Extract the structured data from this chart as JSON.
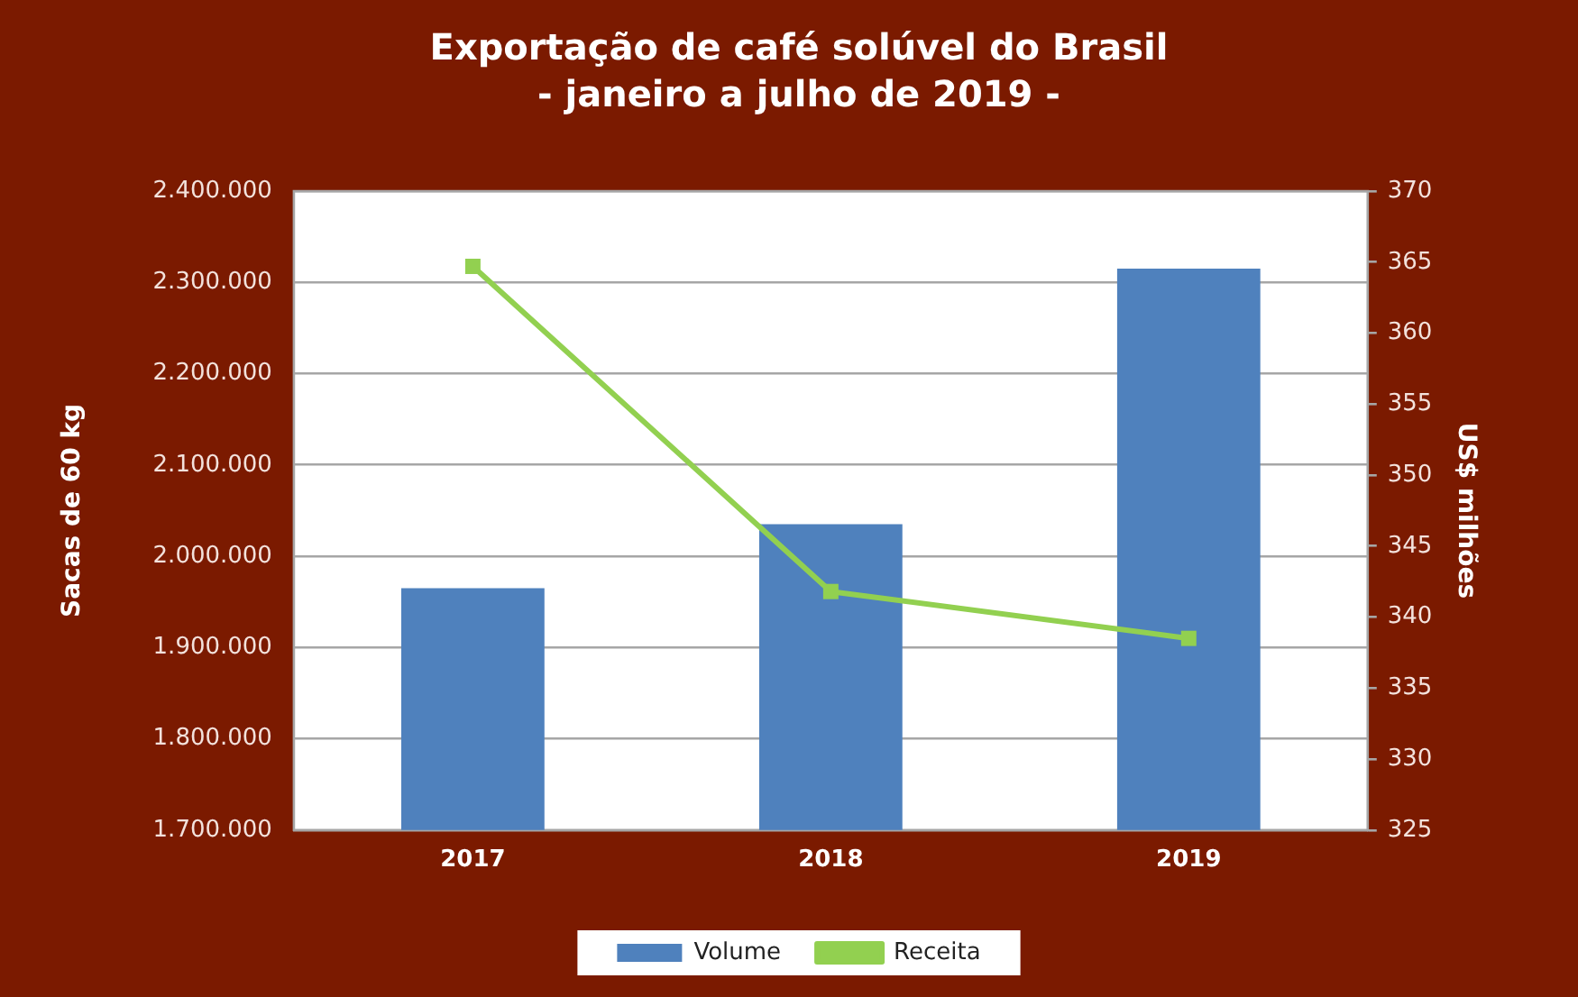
{
  "chart_data": {
    "type": "bar",
    "title": "Exportação de café solúvel do Brasil",
    "subtitle": "- janeiro a julho de 2019 -",
    "categories": [
      "2017",
      "2018",
      "2019"
    ],
    "series": [
      {
        "name": "Volume",
        "color": "#4f81bd",
        "values": [
          1965000,
          2035000,
          2315000
        ]
      },
      {
        "name": "Receita",
        "type": "line",
        "color": "#92d050",
        "axis": "y2",
        "values": [
          364.7,
          341.8,
          338.5
        ]
      }
    ],
    "ylabel": "Sacas de 60 kg",
    "y2label": "US$ milhões",
    "ylim": [
      1700000,
      2400000
    ],
    "yticks": [
      {
        "value": 1700000,
        "label": "1.700.000"
      },
      {
        "value": 1800000,
        "label": "1.800.000"
      },
      {
        "value": 1900000,
        "label": "1.900.000"
      },
      {
        "value": 2000000,
        "label": "2.000.000"
      },
      {
        "value": 2100000,
        "label": "2.100.000"
      },
      {
        "value": 2200000,
        "label": "2.200.000"
      },
      {
        "value": 2300000,
        "label": "2.300.000"
      },
      {
        "value": 2400000,
        "label": "2.400.000"
      }
    ],
    "y2lim": [
      325,
      370
    ],
    "y2ticks": [
      325,
      330,
      335,
      340,
      345,
      350,
      355,
      360,
      365,
      370
    ],
    "grid": "y",
    "legend": "bottom",
    "marker": "square"
  }
}
